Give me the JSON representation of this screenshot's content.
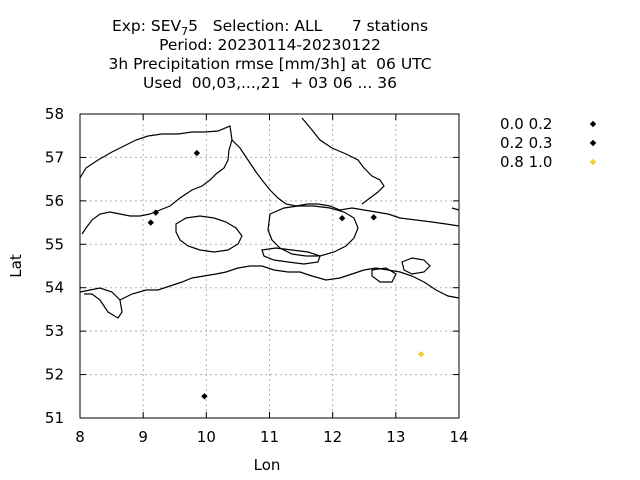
{
  "chart_data": {
    "type": "scatter",
    "title_lines": [
      "Exp: SEV",
      "Period: 20230114-20230122",
      "3h Precipitation rmse [mm/3h] at  06 UTC",
      "Used  00,03,...,21  + 03 06 ... 36"
    ],
    "exp_subscript": "7",
    "exp_suffix": "5   Selection: ALL      7 stations",
    "xlabel": "Lon",
    "ylabel": "Lat",
    "xlim": [
      8,
      14
    ],
    "ylim": [
      51,
      58
    ],
    "xticks": [
      "8",
      "9",
      "10",
      "11",
      "12",
      "13",
      "14"
    ],
    "yticks": [
      "51",
      "52",
      "53",
      "54",
      "55",
      "56",
      "57",
      "58"
    ],
    "grid": true,
    "legend_position": "right",
    "series": [
      {
        "name": "0.0 0.2",
        "color": "#000000",
        "points": [
          [
            9.85,
            57.1
          ],
          [
            9.12,
            55.5
          ],
          [
            9.2,
            55.73
          ],
          [
            12.15,
            55.6
          ],
          [
            12.65,
            55.62
          ],
          [
            9.97,
            51.5
          ]
        ]
      },
      {
        "name": "0.2 0.3",
        "color": "#000000",
        "points": []
      },
      {
        "name": "0.8 1.0",
        "color": "#f2cf30",
        "points": [
          [
            13.4,
            52.47
          ]
        ]
      }
    ]
  }
}
